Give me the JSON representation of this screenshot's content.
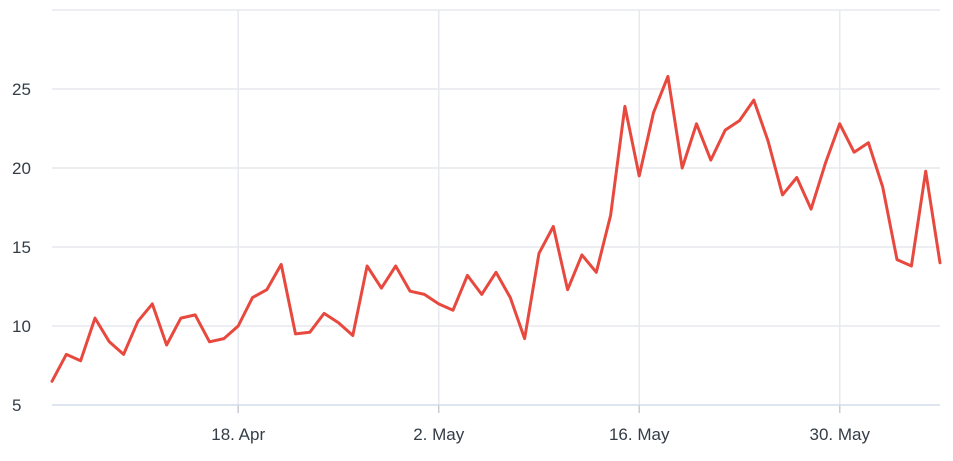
{
  "chart_data": {
    "type": "line",
    "title": "",
    "xlabel": "",
    "ylabel": "",
    "x_tick_labels": [
      "18. Apr",
      "2. May",
      "16. May",
      "30. May"
    ],
    "y_tick_labels": [
      "5",
      "10",
      "15",
      "20",
      "25"
    ],
    "ylim": [
      5,
      30
    ],
    "xlim": [
      "2024-04-05",
      "2024-06-06"
    ],
    "grid": {
      "horizontal": true,
      "vertical": true
    },
    "legend": "none",
    "colors": {
      "line": "#e8493f",
      "grid": "#e6e9ee",
      "text": "#333d47"
    },
    "series": [
      {
        "x": [
          "2024-04-05",
          "2024-04-06",
          "2024-04-07",
          "2024-04-08",
          "2024-04-09",
          "2024-04-10",
          "2024-04-11",
          "2024-04-12",
          "2024-04-13",
          "2024-04-14",
          "2024-04-15",
          "2024-04-16",
          "2024-04-17",
          "2024-04-18",
          "2024-04-19",
          "2024-04-20",
          "2024-04-21",
          "2024-04-22",
          "2024-04-23",
          "2024-04-24",
          "2024-04-25",
          "2024-04-26",
          "2024-04-27",
          "2024-04-28",
          "2024-04-29",
          "2024-04-30",
          "2024-05-01",
          "2024-05-02",
          "2024-05-03",
          "2024-05-04",
          "2024-05-05",
          "2024-05-06",
          "2024-05-07",
          "2024-05-08",
          "2024-05-09",
          "2024-05-10",
          "2024-05-11",
          "2024-05-12",
          "2024-05-13",
          "2024-05-14",
          "2024-05-15",
          "2024-05-16",
          "2024-05-17",
          "2024-05-18",
          "2024-05-19",
          "2024-05-20",
          "2024-05-21",
          "2024-05-22",
          "2024-05-23",
          "2024-05-24",
          "2024-05-25",
          "2024-05-26",
          "2024-05-27",
          "2024-05-28",
          "2024-05-29",
          "2024-05-30",
          "2024-05-31",
          "2024-06-01",
          "2024-06-02",
          "2024-06-03",
          "2024-06-04",
          "2024-06-05",
          "2024-06-06"
        ],
        "values": [
          6.5,
          8.2,
          7.8,
          10.5,
          9.0,
          8.2,
          10.3,
          11.4,
          8.8,
          10.5,
          10.7,
          9.0,
          9.2,
          10.0,
          11.8,
          12.3,
          13.9,
          9.5,
          9.6,
          10.8,
          10.2,
          9.4,
          13.8,
          12.4,
          13.8,
          12.2,
          12.0,
          11.4,
          11.0,
          13.2,
          12.0,
          13.4,
          11.8,
          9.2,
          14.6,
          16.3,
          12.3,
          14.5,
          13.4,
          17.0,
          23.9,
          19.5,
          23.5,
          25.8,
          20.0,
          22.8,
          20.5,
          22.4,
          23.0,
          24.3,
          21.7,
          18.3,
          19.4,
          17.4,
          20.3,
          22.8,
          21.0,
          21.6,
          18.8,
          14.2,
          13.8,
          19.8,
          14.0
        ]
      }
    ]
  }
}
